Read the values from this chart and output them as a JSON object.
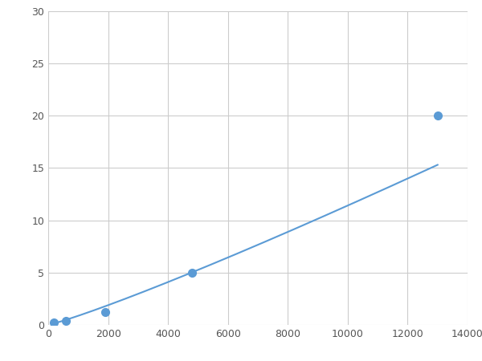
{
  "x_data": [
    200,
    600,
    1900,
    4800,
    13000
  ],
  "y_data": [
    0.2,
    0.4,
    1.2,
    5.0,
    20.0
  ],
  "line_color": "#5B9BD5",
  "marker_color": "#5B9BD5",
  "marker_size": 7,
  "xlim": [
    0,
    14000
  ],
  "ylim": [
    0,
    30
  ],
  "xticks": [
    0,
    2000,
    4000,
    6000,
    8000,
    10000,
    12000,
    14000
  ],
  "yticks": [
    0,
    5,
    10,
    15,
    20,
    25,
    30
  ],
  "grid_color": "#CCCCCC",
  "background_color": "#FFFFFF",
  "figsize": [
    6.0,
    4.5
  ],
  "dpi": 100
}
